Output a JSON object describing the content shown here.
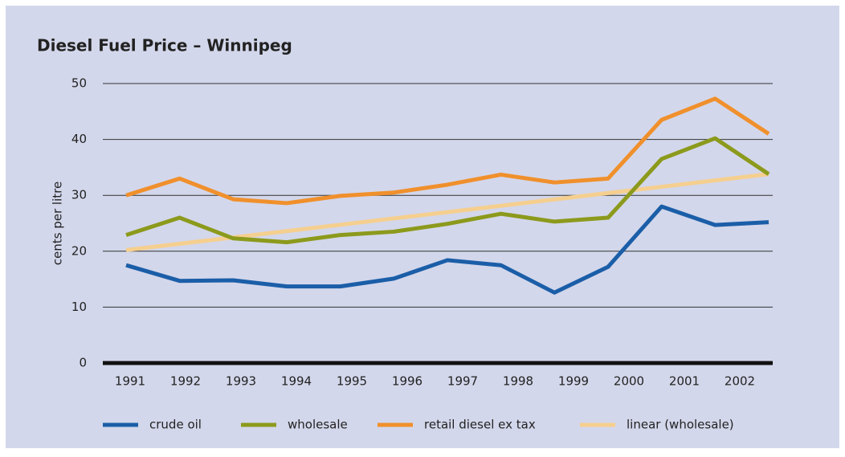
{
  "chart_data": {
    "type": "line",
    "title": "Diesel Fuel Price – Winnipeg",
    "y_label": "cents per litre",
    "categories": [
      "1991",
      "1992",
      "1993",
      "1994",
      "1995",
      "1996",
      "1997",
      "1998",
      "1999",
      "2000",
      "2001",
      "2002",
      null
    ],
    "series": [
      {
        "name": "crude oil",
        "color": "#1b5ea8",
        "values": [
          17.5,
          14.7,
          14.8,
          13.7,
          13.7,
          15.1,
          18.4,
          17.5,
          12.6,
          17.2,
          28,
          24.7,
          25.2
        ]
      },
      {
        "name": "wholesale",
        "color": "#8c9a1c",
        "values": [
          22.9,
          26,
          22.3,
          21.6,
          22.9,
          23.5,
          24.9,
          26.7,
          25.3,
          26,
          36.5,
          40.2,
          33.8
        ]
      },
      {
        "name": "retail diesel ex tax",
        "color": "#f0902c",
        "values": [
          30,
          33,
          29.3,
          28.6,
          29.9,
          30.5,
          31.9,
          33.7,
          32.3,
          33,
          43.5,
          47.3,
          41
        ]
      },
      {
        "name": "linear (wholesale)",
        "color": "#f5cf8f",
        "values": [
          20.2,
          21.33,
          22.47,
          23.6,
          24.73,
          25.87,
          27,
          28.13,
          29.27,
          30.4,
          31.53,
          32.67,
          33.8
        ]
      }
    ],
    "ylim": [
      0,
      50
    ],
    "yticks": [
      0,
      10,
      20,
      30,
      40,
      50
    ],
    "grid": true,
    "legend": "bottom"
  }
}
